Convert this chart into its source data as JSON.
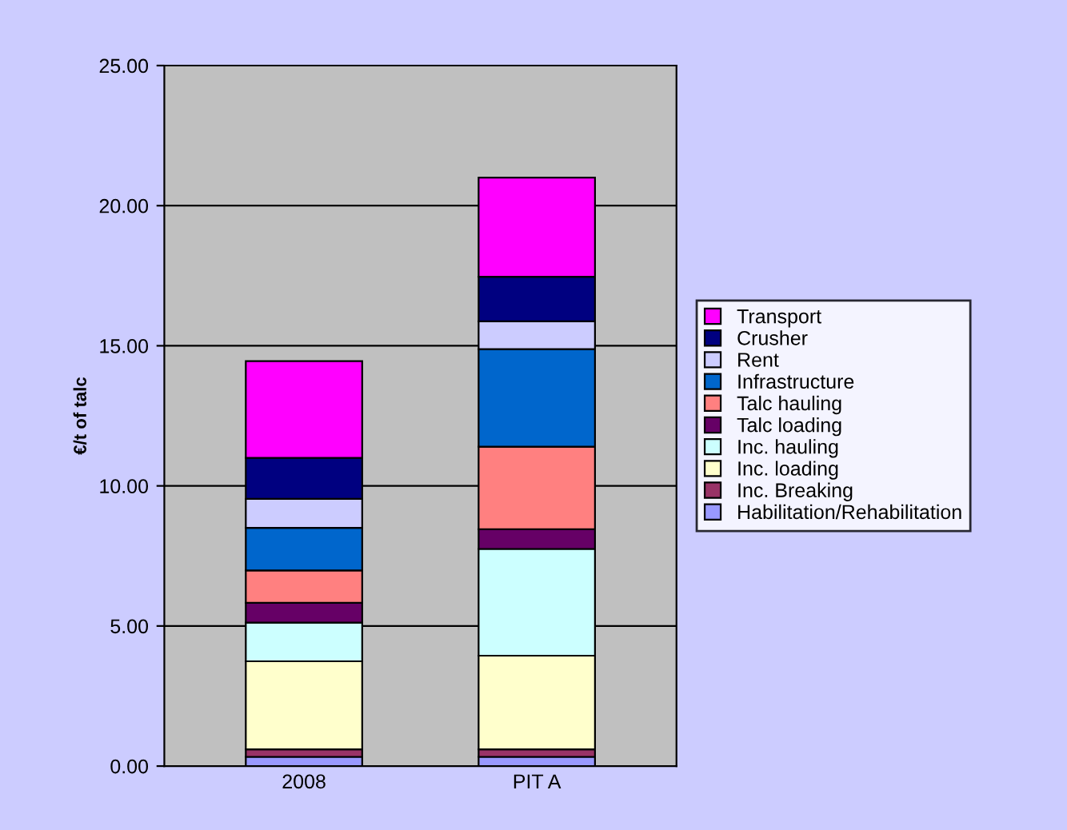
{
  "chart_data": {
    "type": "bar",
    "stacked": true,
    "ylabel": "€/t of talc",
    "categories": [
      "2008",
      "PIT A"
    ],
    "series": [
      {
        "name": "Habilitation/Rehabilitation",
        "color": "#9999ff",
        "values": [
          0.33,
          0.33
        ]
      },
      {
        "name": "Inc. Breaking",
        "color": "#993366",
        "values": [
          0.27,
          0.27
        ]
      },
      {
        "name": "Inc. loading",
        "color": "#ffffcc",
        "values": [
          3.14,
          3.34
        ]
      },
      {
        "name": "Inc. hauling",
        "color": "#ccffff",
        "values": [
          1.38,
          3.81
        ]
      },
      {
        "name": "Talc loading",
        "color": "#660066",
        "values": [
          0.71,
          0.7
        ]
      },
      {
        "name": "Talc hauling",
        "color": "#ff8080",
        "values": [
          1.15,
          2.95
        ]
      },
      {
        "name": "Infrastructure",
        "color": "#0066cc",
        "values": [
          1.52,
          3.48
        ]
      },
      {
        "name": "Rent",
        "color": "#ccccff",
        "values": [
          1.04,
          0.99
        ]
      },
      {
        "name": "Crusher",
        "color": "#000080",
        "values": [
          1.46,
          1.59
        ]
      },
      {
        "name": "Transport",
        "color": "#ff00ff",
        "values": [
          3.45,
          3.54
        ]
      }
    ],
    "ylim": [
      0,
      25
    ],
    "yticks": [
      {
        "value": 0,
        "label": "0.00"
      },
      {
        "value": 5,
        "label": "5.00"
      },
      {
        "value": 10,
        "label": "10.00"
      },
      {
        "value": 15,
        "label": "15.00"
      },
      {
        "value": 20,
        "label": "20.00"
      },
      {
        "value": 25,
        "label": "25.00"
      }
    ],
    "grid": "y",
    "legend": "right"
  }
}
